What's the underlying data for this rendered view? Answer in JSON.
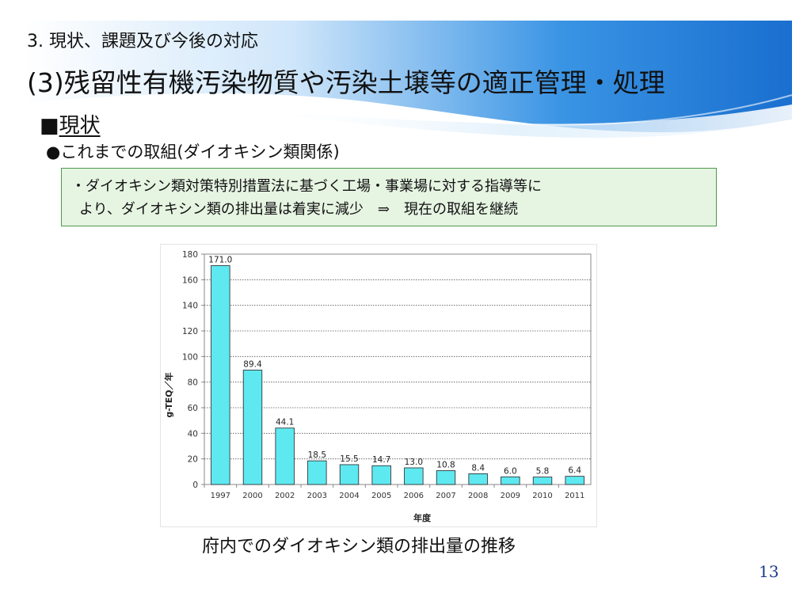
{
  "header": {
    "line1": "3. 現状、課題及び今後の対応",
    "line2": "(3)残留性有機汚染物質や汚染土壌等の適正管理・処理"
  },
  "section": {
    "marker": "■",
    "label": "現状"
  },
  "subsection": {
    "label": "●これまでの取組(ダイオキシン類関係)"
  },
  "note": {
    "line1": "・ダイオキシン類対策特別措置法に基づく工場・事業場に対する指導等に",
    "line2": "より、ダイオキシン類の排出量は着実に減少　⇒　現在の取組を継続"
  },
  "chart_data": {
    "type": "bar",
    "categories": [
      "1997",
      "2000",
      "2002",
      "2003",
      "2004",
      "2005",
      "2006",
      "2007",
      "2008",
      "2009",
      "2010",
      "2011"
    ],
    "values": [
      171.0,
      89.4,
      44.1,
      18.5,
      15.5,
      14.7,
      13.0,
      10.8,
      8.4,
      6.0,
      5.8,
      6.4
    ],
    "data_labels": [
      "171.0",
      "89.4",
      "44.1",
      "18.5",
      "15.5",
      "14.7",
      "13.0",
      "10.8",
      "8.4",
      "6.0",
      "5.8",
      "6.4"
    ],
    "xlabel": "年度",
    "ylabel": "g-TEQ／年",
    "ylim": [
      0,
      180
    ],
    "yticks": [
      0,
      20,
      40,
      60,
      80,
      100,
      120,
      140,
      160,
      180
    ],
    "grid": true,
    "bar_color": "#5ee8f0",
    "grid_style": "dotted"
  },
  "caption": "府内でのダイオキシン類の排出量の推移",
  "page_number": "13",
  "colors": {
    "banner_blue": "#1e7fd8",
    "note_background": "#e6f4e2",
    "note_border": "#4c9a4c",
    "page_number": "#1a3a8a"
  }
}
